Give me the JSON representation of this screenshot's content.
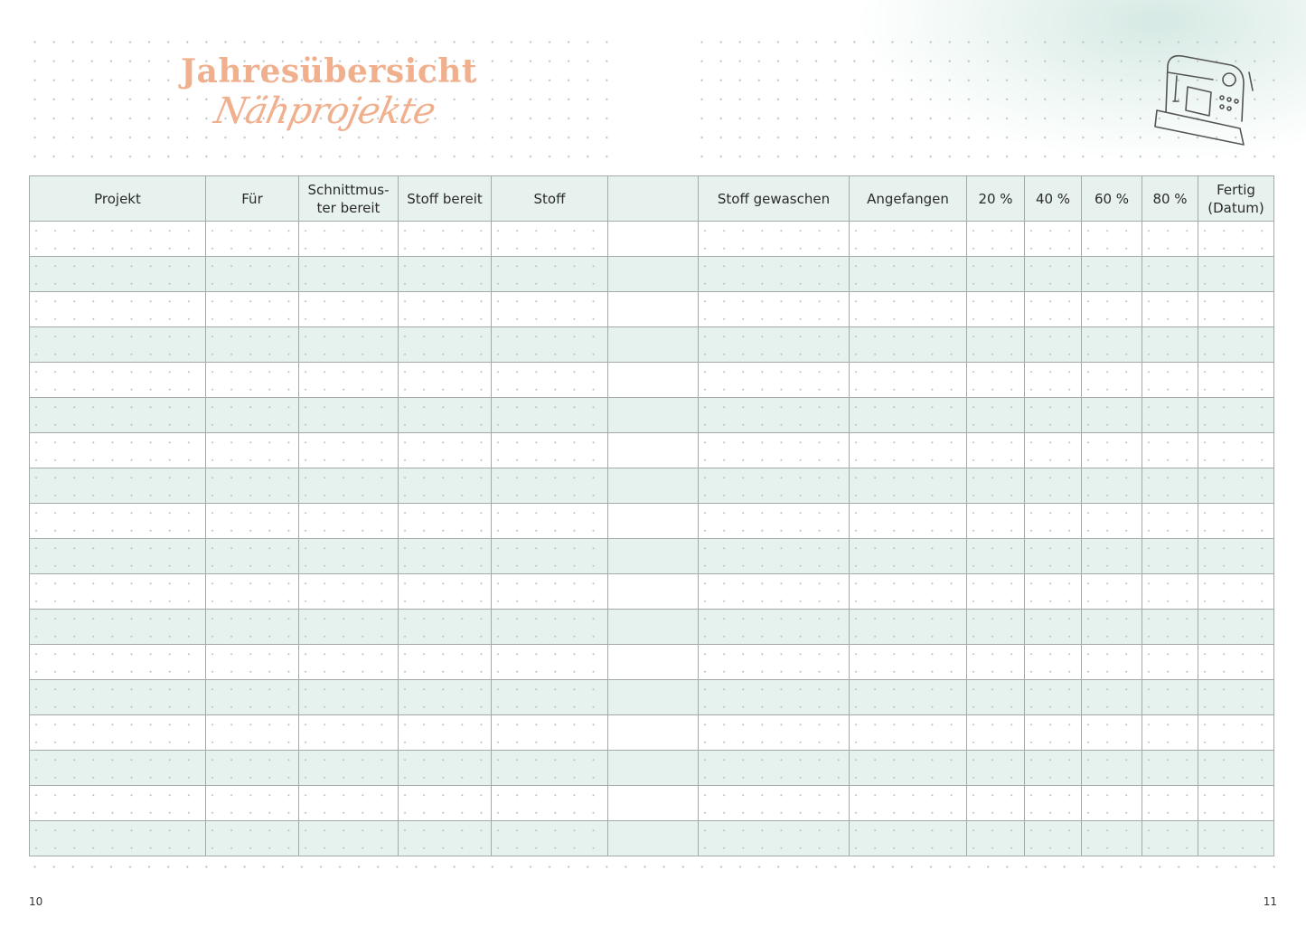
{
  "title": {
    "line1": "Jahresübersicht",
    "line2": "Nähprojekte"
  },
  "icon": "sewing-machine-icon",
  "colors": {
    "accent": "#f0b08e",
    "stripe": "#e6f2ee",
    "header_bg": "#e7f2ef",
    "grid": "#a4aaa8"
  },
  "table": {
    "columns": [
      "Projekt",
      "Für",
      "Schnittmus-\nter bereit",
      "Stoff bereit",
      "Stoff",
      "",
      "Stoff gewaschen",
      "Angefangen",
      "20 %",
      "40 %",
      "60 %",
      "80 %",
      "Fertig\n(Datum)"
    ],
    "row_count": 18
  },
  "page_numbers": {
    "left": "10",
    "right": "11"
  }
}
